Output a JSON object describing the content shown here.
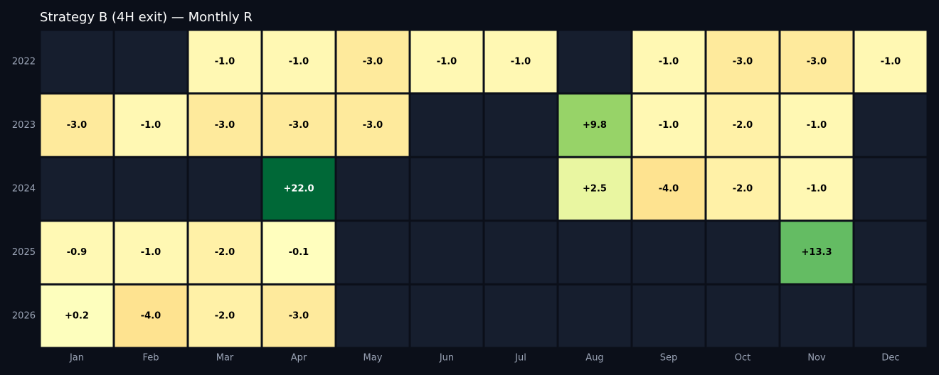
{
  "chart_data": {
    "type": "heatmap",
    "title": "Strategy B (4H exit) — Monthly R",
    "xlabel": "",
    "ylabel": "",
    "x_categories": [
      "Jan",
      "Feb",
      "Mar",
      "Apr",
      "May",
      "Jun",
      "Jul",
      "Aug",
      "Sep",
      "Oct",
      "Nov",
      "Dec"
    ],
    "y_categories": [
      "2022",
      "2023",
      "2024",
      "2025",
      "2026"
    ],
    "values": [
      [
        null,
        null,
        -1.0,
        -1.0,
        -3.0,
        -1.0,
        -1.0,
        null,
        -1.0,
        -3.0,
        -3.0,
        -1.0
      ],
      [
        -3.0,
        -1.0,
        -3.0,
        -3.0,
        -3.0,
        null,
        null,
        9.8,
        -1.0,
        -2.0,
        -1.0,
        null
      ],
      [
        null,
        null,
        null,
        22.0,
        null,
        null,
        null,
        2.5,
        -4.0,
        -2.0,
        -1.0,
        null
      ],
      [
        -0.9,
        -1.0,
        -2.0,
        -0.1,
        null,
        null,
        null,
        null,
        null,
        null,
        13.3,
        null
      ],
      [
        0.2,
        -4.0,
        -2.0,
        -3.0,
        null,
        null,
        null,
        null,
        null,
        null,
        null,
        null
      ]
    ],
    "labels": [
      [
        "",
        "",
        "-1.0",
        "-1.0",
        "-3.0",
        "-1.0",
        "-1.0",
        "",
        "-1.0",
        "-3.0",
        "-3.0",
        "-1.0"
      ],
      [
        "-3.0",
        "-1.0",
        "-3.0",
        "-3.0",
        "-3.0",
        "",
        "",
        "+9.8",
        "-1.0",
        "-2.0",
        "-1.0",
        ""
      ],
      [
        "",
        "",
        "",
        "+22.0",
        "",
        "",
        "",
        "+2.5",
        "-4.0",
        "-2.0",
        "-1.0",
        ""
      ],
      [
        "-0.9",
        "-1.0",
        "-2.0",
        "-0.1",
        "",
        "",
        "",
        "",
        "",
        "",
        "+13.3",
        ""
      ],
      [
        "+0.2",
        "-4.0",
        "-2.0",
        "-3.0",
        "",
        "",
        "",
        "",
        "",
        "",
        "",
        ""
      ]
    ],
    "colormap": "RdYlGn",
    "vmin": -22,
    "vmax": 22,
    "empty_cell_color": "#161e2e",
    "legend": "none",
    "grid": false
  },
  "colors": {
    "background": "#0b0f19",
    "title": "#ffffff",
    "tick_text": "#9aa3b5",
    "cell_border": "#0b0f19"
  }
}
